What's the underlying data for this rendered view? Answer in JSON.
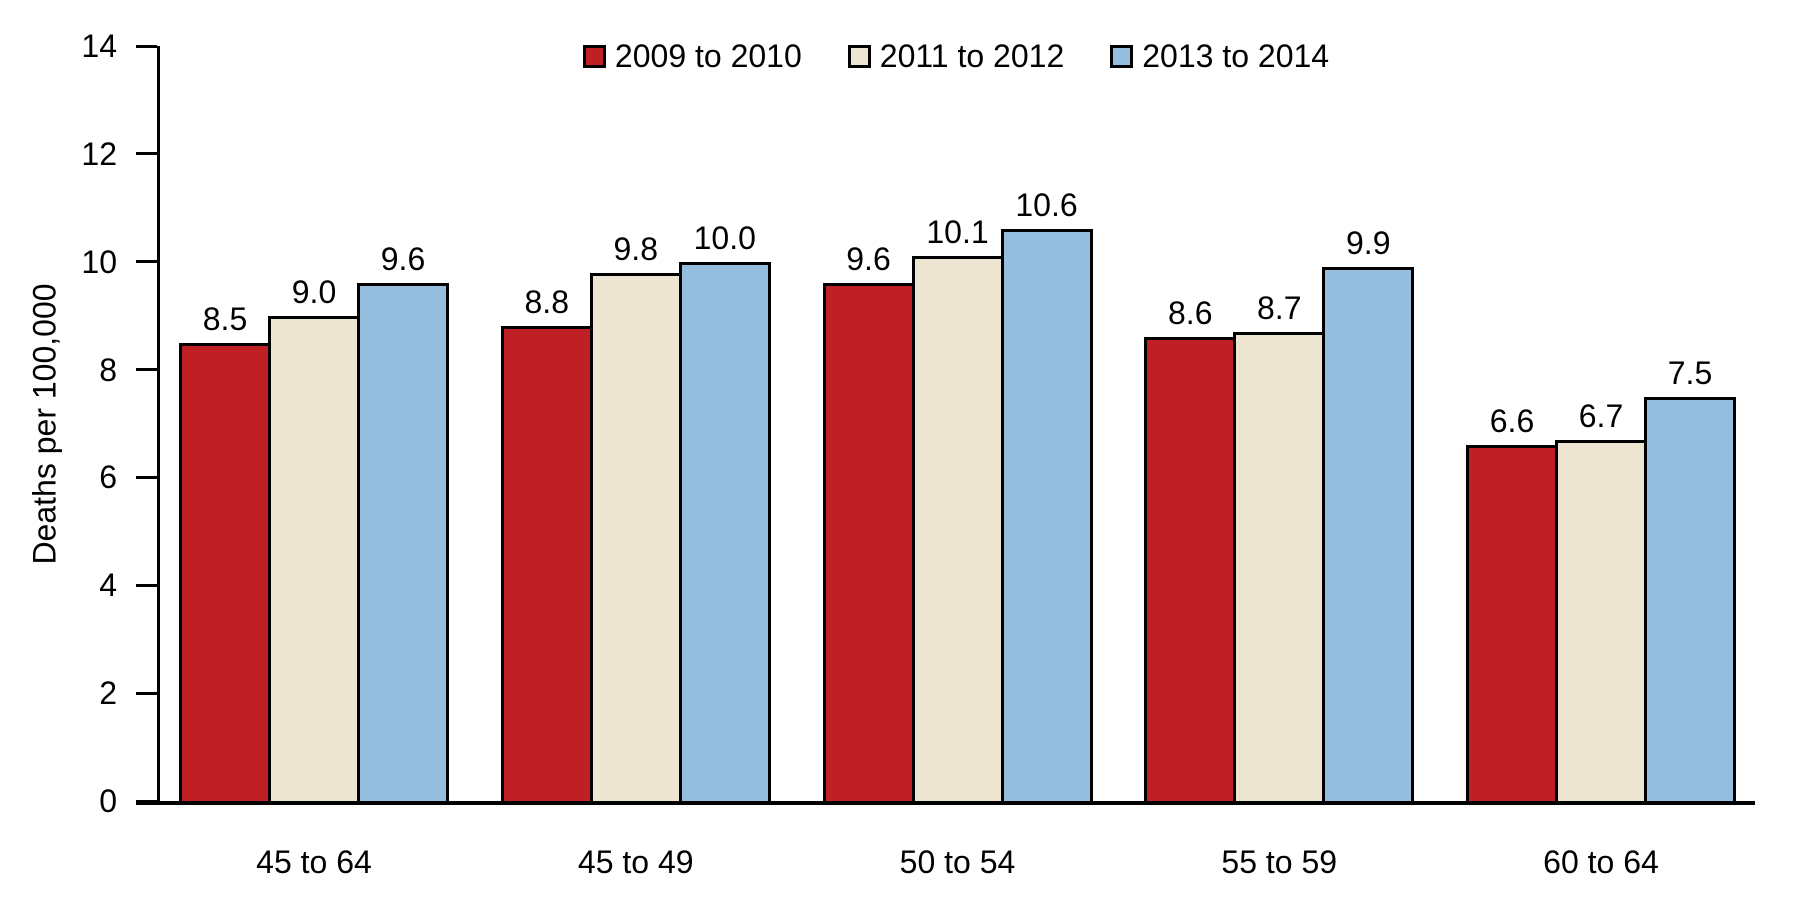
{
  "chart_data": {
    "type": "bar",
    "title": "",
    "ylabel": "Deaths per 100,000",
    "xlabel": "",
    "ylim": [
      0,
      14
    ],
    "yticks": [
      0,
      2,
      4,
      6,
      8,
      10,
      12,
      14
    ],
    "grid": false,
    "legend_position": "top-center",
    "categories": [
      "45 to 64",
      "45 to 49",
      "50 to 54",
      "55 to 59",
      "60 to 64"
    ],
    "series": [
      {
        "name": "2009 to 2010",
        "color": "#be2026",
        "values": [
          8.5,
          8.8,
          9.6,
          8.6,
          6.6
        ]
      },
      {
        "name": "2011 to 2012",
        "color": "#ede4d1",
        "values": [
          9.0,
          9.8,
          10.1,
          8.7,
          6.7
        ]
      },
      {
        "name": "2013 to 2014",
        "color": "#95bdde",
        "values": [
          9.6,
          10.0,
          10.6,
          9.9,
          7.5
        ]
      }
    ],
    "value_label_decimals": 1,
    "colors": {
      "axis": "#000000",
      "bar_outline": "#000000",
      "background": "#ffffff",
      "text": "#000000"
    }
  }
}
